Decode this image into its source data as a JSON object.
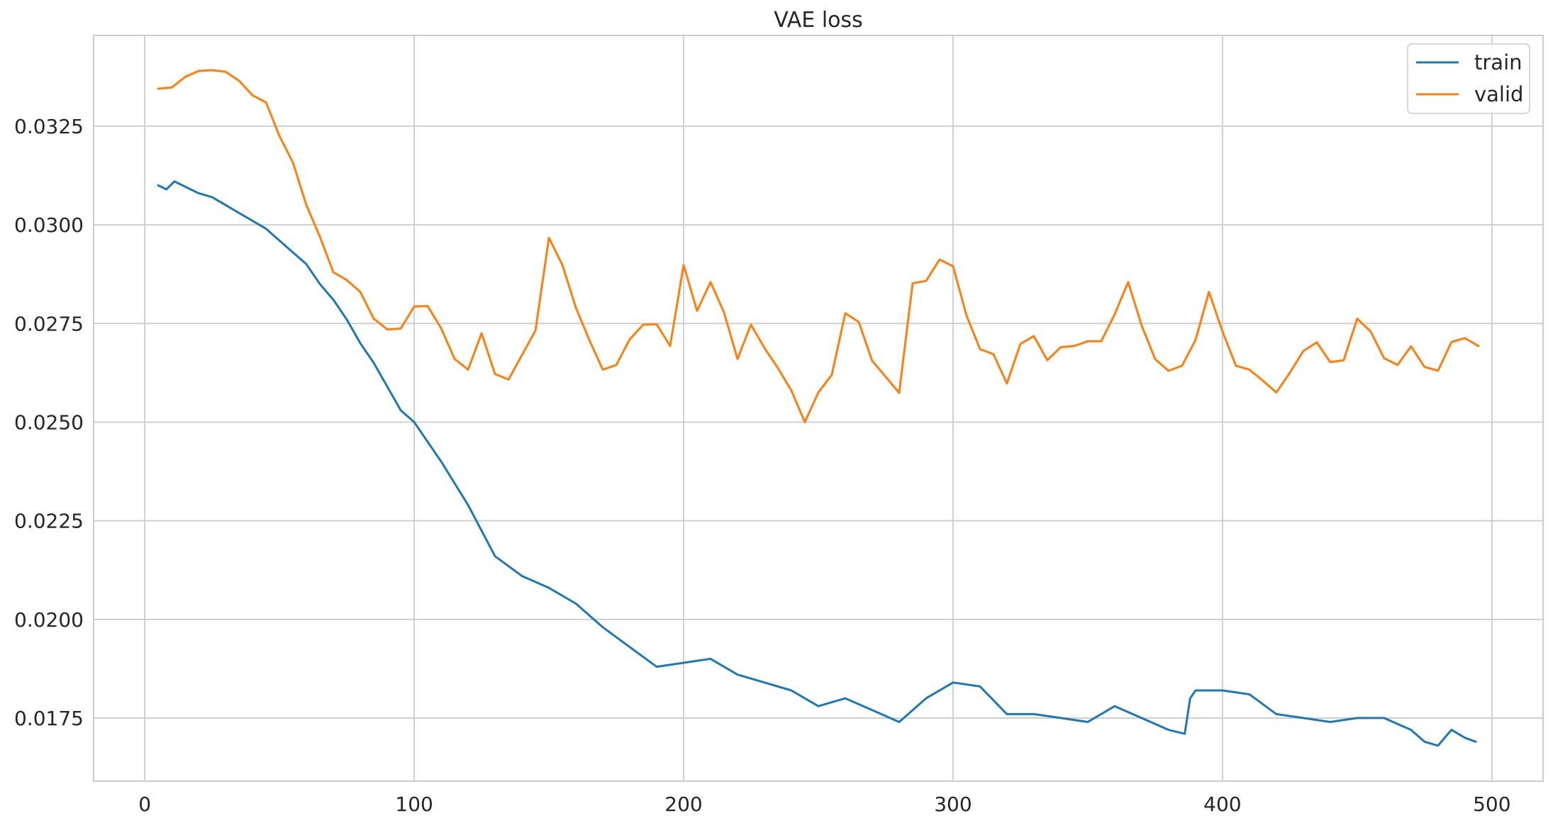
{
  "chart_data": {
    "type": "line",
    "title": "VAE loss",
    "xlabel": "",
    "ylabel": "",
    "xlim": [
      -19,
      519
    ],
    "ylim": [
      0.0159,
      0.0348
    ],
    "xticks": [
      0,
      100,
      200,
      300,
      400,
      500
    ],
    "xtick_labels": [
      "0",
      "100",
      "200",
      "300",
      "400",
      "500"
    ],
    "yticks": [
      0.0175,
      0.02,
      0.0225,
      0.025,
      0.0275,
      0.03,
      0.0325
    ],
    "ytick_labels": [
      "0.0175",
      "0.0200",
      "0.0225",
      "0.0250",
      "0.0275",
      "0.0300",
      "0.0325"
    ],
    "grid": true,
    "legend_position": "top-right",
    "series": [
      {
        "name": "train",
        "color": "#1f77b4",
        "x": [
          5,
          8,
          11,
          14,
          17,
          20,
          25,
          30,
          35,
          40,
          45,
          50,
          55,
          60,
          65,
          70,
          75,
          80,
          85,
          90,
          95,
          100,
          110,
          120,
          130,
          140,
          150,
          160,
          170,
          180,
          190,
          200,
          210,
          220,
          230,
          240,
          250,
          260,
          270,
          280,
          290,
          300,
          310,
          320,
          330,
          340,
          350,
          360,
          370,
          380,
          386,
          388,
          390,
          400,
          410,
          420,
          430,
          440,
          450,
          460,
          470,
          475,
          480,
          485,
          490,
          494
        ],
        "y": [
          0.031,
          0.0309,
          0.0311,
          0.031,
          0.0309,
          0.0308,
          0.0307,
          0.0305,
          0.0303,
          0.0301,
          0.0299,
          0.0296,
          0.0293,
          0.029,
          0.0285,
          0.0281,
          0.0276,
          0.027,
          0.0265,
          0.0259,
          0.0253,
          0.025,
          0.024,
          0.0229,
          0.0216,
          0.0211,
          0.0208,
          0.0204,
          0.0198,
          0.0193,
          0.0188,
          0.0189,
          0.019,
          0.0186,
          0.0184,
          0.0182,
          0.0178,
          0.018,
          0.0177,
          0.0174,
          0.018,
          0.0184,
          0.0183,
          0.0176,
          0.0176,
          0.0175,
          0.0174,
          0.0178,
          0.0175,
          0.0172,
          0.0171,
          0.018,
          0.0182,
          0.0182,
          0.0181,
          0.0176,
          0.0175,
          0.0174,
          0.0175,
          0.0175,
          0.0172,
          0.0169,
          0.0168,
          0.0172,
          0.017,
          0.0169
        ]
      },
      {
        "name": "valid",
        "color": "#ff7f0e",
        "x": [
          5,
          10,
          15,
          20,
          25,
          30,
          35,
          40,
          45,
          50,
          55,
          60,
          65,
          70,
          75,
          80,
          85,
          90,
          95,
          100,
          105,
          110,
          115,
          120,
          125,
          130,
          135,
          140,
          145,
          150,
          155,
          160,
          165,
          170,
          175,
          180,
          185,
          190,
          195,
          200,
          205,
          210,
          215,
          220,
          225,
          230,
          235,
          240,
          245,
          250,
          255,
          260,
          265,
          270,
          275,
          280,
          285,
          290,
          295,
          300,
          305,
          310,
          315,
          320,
          325,
          330,
          335,
          340,
          345,
          350,
          355,
          360,
          365,
          370,
          375,
          380,
          385,
          390,
          395,
          400,
          405,
          410,
          415,
          420,
          425,
          430,
          435,
          440,
          445,
          450,
          455,
          460,
          465,
          470,
          475,
          480,
          485,
          490,
          495
        ],
        "y": [
          0.03345,
          0.03348,
          0.03375,
          0.0339,
          0.03392,
          0.03388,
          0.03365,
          0.03328,
          0.0331,
          0.03225,
          0.03158,
          0.0305,
          0.0297,
          0.0288,
          0.0286,
          0.0283,
          0.02762,
          0.02735,
          0.02737,
          0.02793,
          0.02794,
          0.02738,
          0.0266,
          0.02633,
          0.02725,
          0.02622,
          0.02608,
          0.0267,
          0.02732,
          0.02967,
          0.02898,
          0.0279,
          0.02708,
          0.02633,
          0.02645,
          0.0271,
          0.02747,
          0.02748,
          0.02693,
          0.02898,
          0.02782,
          0.02855,
          0.02778,
          0.0266,
          0.02747,
          0.02688,
          0.02637,
          0.0258,
          0.025,
          0.02575,
          0.0262,
          0.02776,
          0.02754,
          0.02655,
          0.02615,
          0.02574,
          0.02852,
          0.02858,
          0.02912,
          0.02895,
          0.0277,
          0.02685,
          0.02672,
          0.02598,
          0.02698,
          0.02718,
          0.02657,
          0.0269,
          0.02693,
          0.02705,
          0.02705,
          0.02773,
          0.02855,
          0.02745,
          0.0266,
          0.0263,
          0.02643,
          0.02708,
          0.0283,
          0.0273,
          0.02643,
          0.02633,
          0.02605,
          0.02575,
          0.02625,
          0.0268,
          0.02702,
          0.02652,
          0.02657,
          0.02762,
          0.0273,
          0.02662,
          0.02645,
          0.02692,
          0.0264,
          0.0263,
          0.02703,
          0.02713,
          0.02693
        ]
      }
    ]
  },
  "colors": {
    "grid": "#cccccc",
    "axis_text": "#262626",
    "background": "#ffffff"
  }
}
